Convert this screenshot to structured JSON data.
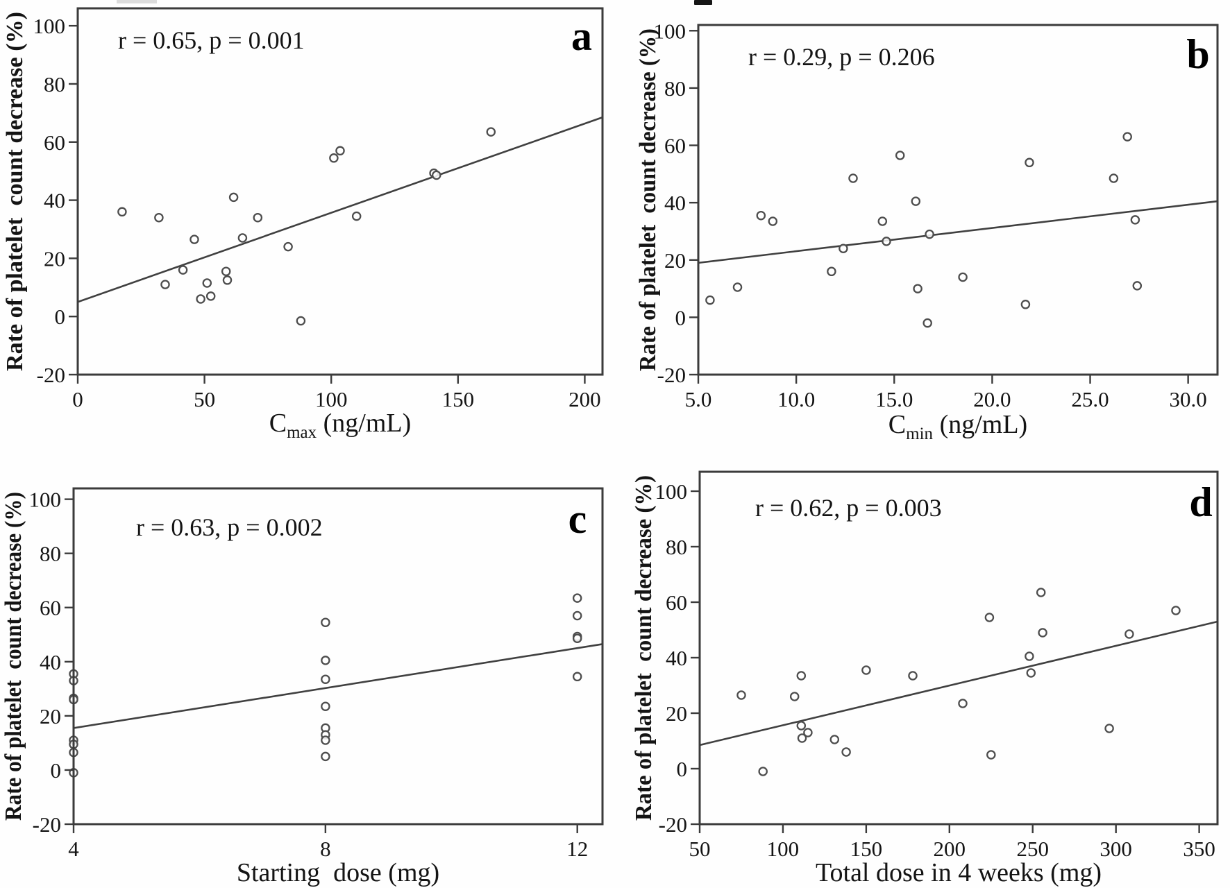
{
  "styles": {
    "axis_color": "#3b3b3b",
    "text_color": "#141414",
    "point_color": "#4d4d4d",
    "trend_color": "#404040",
    "background": "#fefefe"
  },
  "ylabel": "Rate of platelet  count decrease (%)",
  "chart_data": [
    {
      "id": "a",
      "type": "scatter",
      "panel_label": "a",
      "annotation": "r = 0.65, p = 0.001",
      "xlabel": {
        "pre": "C",
        "sub": "max",
        "post": " (ng/mL)"
      },
      "ylabel": "Rate of platelet  count decrease (%)",
      "xlim": [
        0,
        207
      ],
      "ylim": [
        -20,
        106
      ],
      "xticks": [
        0,
        50,
        100,
        150,
        200
      ],
      "xtick_labels": [
        "0",
        "50",
        "100",
        "150",
        "200"
      ],
      "yticks": [
        -20,
        0,
        20,
        40,
        60,
        80,
        100
      ],
      "ytick_labels": [
        "-20",
        "0",
        "20",
        "40",
        "60",
        "80",
        "100"
      ],
      "grid": false,
      "trendline": {
        "x": [
          0,
          207
        ],
        "y": [
          5,
          68.5
        ]
      },
      "points": [
        [
          17.5,
          36
        ],
        [
          32,
          34
        ],
        [
          34.5,
          11
        ],
        [
          41.5,
          16
        ],
        [
          46,
          26.5
        ],
        [
          48.5,
          6
        ],
        [
          51,
          11.5
        ],
        [
          52.5,
          7
        ],
        [
          58.5,
          15.5
        ],
        [
          59,
          12.5
        ],
        [
          61.5,
          41
        ],
        [
          65,
          27
        ],
        [
          71,
          34
        ],
        [
          83,
          24
        ],
        [
          88,
          -1.5
        ],
        [
          101,
          54.5
        ],
        [
          103.5,
          57
        ],
        [
          110,
          34.5
        ],
        [
          140.5,
          49.3
        ],
        [
          141.5,
          48.6
        ],
        [
          163,
          63.5
        ]
      ]
    },
    {
      "id": "b",
      "type": "scatter",
      "panel_label": "b",
      "annotation": "r = 0.29, p = 0.206",
      "xlabel": {
        "pre": "C",
        "sub": "min",
        "post": " (ng/mL)"
      },
      "ylabel": "Rate of platelet  count decrease (%)",
      "xlim": [
        5,
        31.5
      ],
      "ylim": [
        -20,
        102
      ],
      "xticks": [
        5,
        10,
        15,
        20,
        25,
        30
      ],
      "xtick_labels": [
        "5.0",
        "10.0",
        "15.0",
        "20.0",
        "25.0",
        "30.0"
      ],
      "yticks": [
        -20,
        0,
        20,
        40,
        60,
        80,
        100
      ],
      "ytick_labels": [
        "-20",
        "0",
        "20",
        "40",
        "60",
        "80",
        "100"
      ],
      "grid": false,
      "trendline": {
        "x": [
          5,
          31.5
        ],
        "y": [
          19,
          40.5
        ]
      },
      "points": [
        [
          5.6,
          6
        ],
        [
          7.0,
          10.5
        ],
        [
          8.2,
          35.5
        ],
        [
          8.8,
          33.5
        ],
        [
          11.8,
          16
        ],
        [
          12.4,
          24
        ],
        [
          12.9,
          48.5
        ],
        [
          14.4,
          33.5
        ],
        [
          14.6,
          26.5
        ],
        [
          15.3,
          56.5
        ],
        [
          16.1,
          40.5
        ],
        [
          16.2,
          10
        ],
        [
          16.7,
          -2
        ],
        [
          16.8,
          29
        ],
        [
          18.5,
          14
        ],
        [
          21.7,
          4.5
        ],
        [
          21.9,
          54
        ],
        [
          26.2,
          48.5
        ],
        [
          26.9,
          63
        ],
        [
          27.3,
          34
        ],
        [
          27.4,
          11
        ]
      ]
    },
    {
      "id": "c",
      "type": "scatter",
      "panel_label": "c",
      "annotation": "r = 0.63, p = 0.002",
      "xlabel": {
        "pre": "Starting  dose (mg)",
        "sub": "",
        "post": ""
      },
      "ylabel": "Rate of platelet  count decrease (%)",
      "xlim": [
        4,
        12.4
      ],
      "ylim": [
        -20,
        104
      ],
      "xticks": [
        4,
        8,
        12
      ],
      "xtick_labels": [
        "4",
        "8",
        "12"
      ],
      "yticks": [
        -20,
        0,
        20,
        40,
        60,
        80,
        100
      ],
      "ytick_labels": [
        "-20",
        "0",
        "20",
        "40",
        "60",
        "80",
        "100"
      ],
      "grid": false,
      "trendline": {
        "x": [
          4,
          12.4
        ],
        "y": [
          15.5,
          46.5
        ]
      },
      "points": [
        [
          4,
          35.5
        ],
        [
          4,
          33
        ],
        [
          4,
          26.5
        ],
        [
          4,
          26
        ],
        [
          4,
          11
        ],
        [
          4,
          9.5
        ],
        [
          4,
          6.5
        ],
        [
          4,
          -1
        ],
        [
          8,
          54.5
        ],
        [
          8,
          40.5
        ],
        [
          8,
          33.5
        ],
        [
          8,
          23.5
        ],
        [
          8,
          15.5
        ],
        [
          8,
          13
        ],
        [
          8,
          11
        ],
        [
          8,
          5
        ],
        [
          12,
          63.5
        ],
        [
          12,
          57
        ],
        [
          12,
          49.3
        ],
        [
          12,
          48.6
        ],
        [
          12,
          34.5
        ]
      ]
    },
    {
      "id": "d",
      "type": "scatter",
      "panel_label": "d",
      "annotation": "r = 0.62, p = 0.003",
      "xlabel": {
        "pre": "Total dose in 4 weeks (mg)",
        "sub": "",
        "post": ""
      },
      "ylabel": "Rate of platelet  count decrease (%)",
      "xlim": [
        50,
        361
      ],
      "ylim": [
        -20,
        107
      ],
      "xticks": [
        50,
        100,
        150,
        200,
        250,
        300,
        350
      ],
      "xtick_labels": [
        "50",
        "100",
        "150",
        "200",
        "250",
        "300",
        "350"
      ],
      "yticks": [
        -20,
        0,
        20,
        40,
        60,
        80,
        100
      ],
      "ytick_labels": [
        "-20",
        "0",
        "20",
        "40",
        "60",
        "80",
        "100"
      ],
      "grid": false,
      "trendline": {
        "x": [
          50,
          361
        ],
        "y": [
          8.5,
          53
        ]
      },
      "points": [
        [
          75,
          26.5
        ],
        [
          88,
          -1
        ],
        [
          107,
          26
        ],
        [
          111,
          33.5
        ],
        [
          111,
          15.5
        ],
        [
          111.5,
          11
        ],
        [
          115,
          13
        ],
        [
          131,
          10.5
        ],
        [
          138,
          6
        ],
        [
          150,
          35.5
        ],
        [
          178,
          33.5
        ],
        [
          208,
          23.5
        ],
        [
          224,
          54.5
        ],
        [
          225,
          5
        ],
        [
          248,
          40.5
        ],
        [
          249,
          34.5
        ],
        [
          255,
          63.5
        ],
        [
          256,
          49
        ],
        [
          296,
          14.5
        ],
        [
          308,
          48.5
        ],
        [
          336,
          57
        ]
      ]
    }
  ]
}
